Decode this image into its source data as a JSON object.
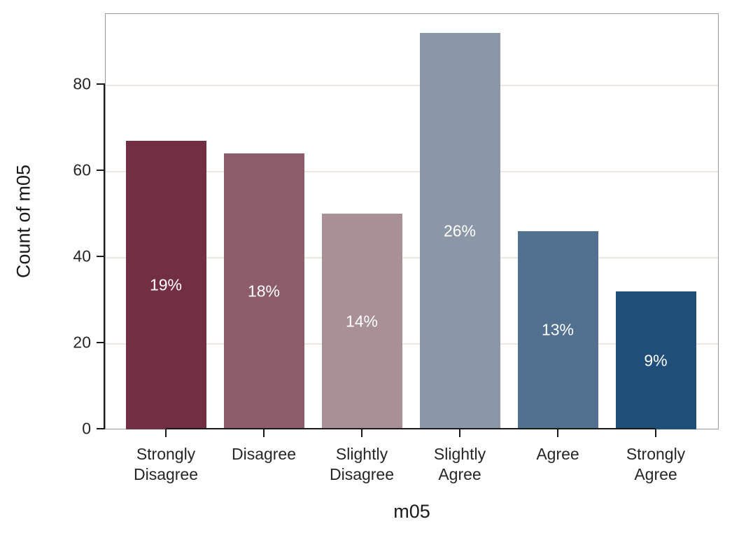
{
  "chart_data": {
    "type": "bar",
    "title": "",
    "xlabel": "m05",
    "ylabel": "Count of m05",
    "categories": [
      "Strongly Disagree",
      "Disagree",
      "Slightly Disagree",
      "Slightly Agree",
      "Agree",
      "Strongly Agree"
    ],
    "values": [
      67,
      64,
      50,
      92,
      46,
      32
    ],
    "bar_labels": [
      "19%",
      "18%",
      "14%",
      "26%",
      "13%",
      "9%"
    ],
    "bar_colors": [
      "#722F44",
      "#8C5C6A",
      "#A98F96",
      "#8B97A6",
      "#52708F",
      "#1F4E78"
    ],
    "yticks": [
      0,
      20,
      40,
      60,
      80
    ],
    "ylim": [
      0,
      96.5
    ],
    "grid": "horizontal-only",
    "legend": "none",
    "colors": {
      "gridline": "#EDE6DC",
      "axis_spine": "#1A1A1A",
      "panel_border": "#9A9A9A",
      "tick_text": "#262626",
      "axis_title_text": "#1A1A1A",
      "bar_label_text": "#FFFFFF",
      "background": "#FFFFFF"
    }
  }
}
